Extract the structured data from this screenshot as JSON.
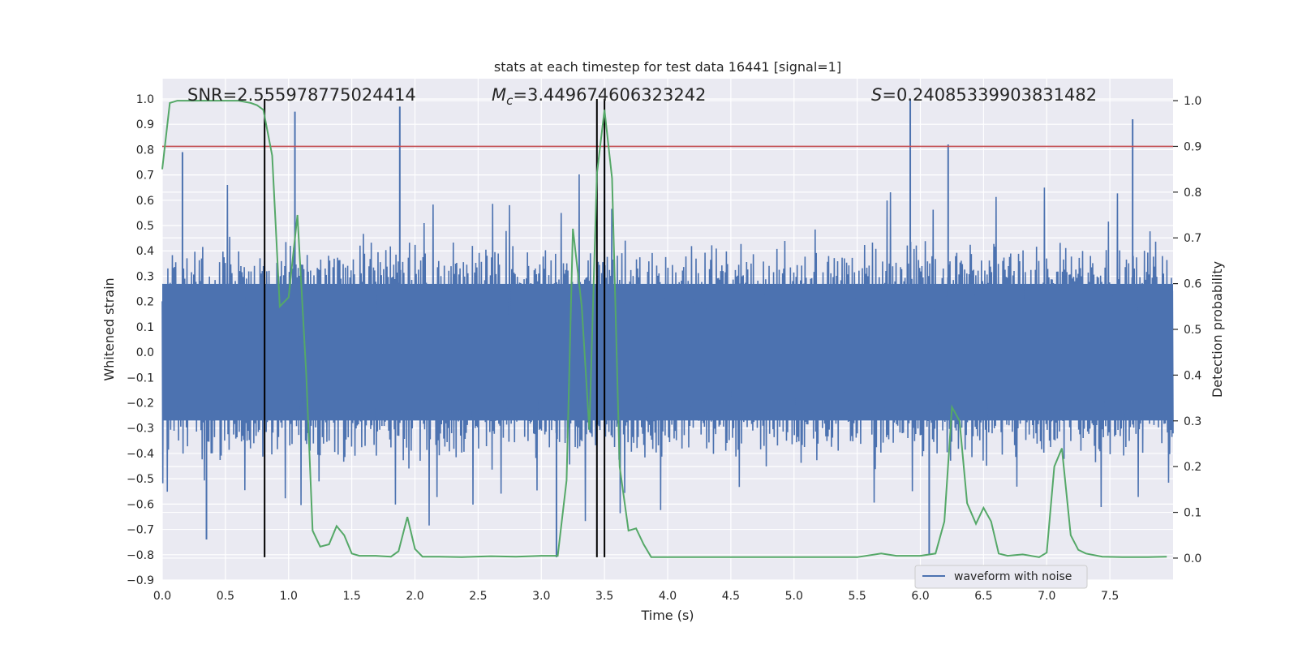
{
  "chart_data": {
    "type": "line",
    "title": "stats at each timestep for test data 16441 [signal=1]",
    "xlabel": "Time (s)",
    "ylabel_left": "Whitened strain",
    "ylabel_right": "Detection probability",
    "xlim": [
      0.0,
      8.0
    ],
    "ylim_left": [
      -0.9,
      1.08
    ],
    "ylim_right": [
      -0.048,
      1.048
    ],
    "xticks": [
      "0.0",
      "0.5",
      "1.0",
      "1.5",
      "2.0",
      "2.5",
      "3.0",
      "3.5",
      "4.0",
      "4.5",
      "5.0",
      "5.5",
      "6.0",
      "6.5",
      "7.0",
      "7.5"
    ],
    "yticks_left": [
      "-0.9",
      "-0.8",
      "-0.7",
      "-0.6",
      "-0.5",
      "-0.4",
      "-0.3",
      "-0.2",
      "-0.1",
      "0.0",
      "0.1",
      "0.2",
      "0.3",
      "0.4",
      "0.5",
      "0.6",
      "0.7",
      "0.8",
      "0.9",
      "1.0"
    ],
    "yticks_right": [
      "0.0",
      "0.1",
      "0.2",
      "0.3",
      "0.4",
      "0.5",
      "0.6",
      "0.7",
      "0.8",
      "0.9",
      "1.0"
    ],
    "annotations": [
      {
        "label": "SNR=2.555978775024414",
        "x": 0.2
      },
      {
        "label": "=3.449674606323242",
        "prefix": "M",
        "sub": "c",
        "x": 2.6
      },
      {
        "label": "=0.24085339903831482",
        "prefix": "S",
        "x": 5.6
      }
    ],
    "threshold": {
      "y_right": 0.9,
      "color": "#c44e52"
    },
    "vlines": [
      0.81,
      3.44,
      3.5
    ],
    "vline_y_left": [
      -0.81,
      1.0
    ],
    "series": [
      {
        "name": "waveform with noise",
        "axis": "left",
        "color": "#4c72b0",
        "note": "dense noisy strain around zero with spikes",
        "envelope": 0.45,
        "spikes": [
          {
            "x": 1.05,
            "y": 0.95
          },
          {
            "x": 1.88,
            "y": 0.97
          },
          {
            "x": 5.92,
            "y": 1.0
          },
          {
            "x": 6.22,
            "y": 0.82
          },
          {
            "x": 7.68,
            "y": 0.92
          },
          {
            "x": 0.16,
            "y": 0.79
          },
          {
            "x": 3.5,
            "y": 0.82
          },
          {
            "x": 3.12,
            "y": -0.81
          },
          {
            "x": 6.07,
            "y": -0.8
          },
          {
            "x": 0.35,
            "y": -0.74
          }
        ]
      },
      {
        "name": "",
        "axis": "right",
        "color": "#55a868",
        "x": [
          0.0,
          0.06,
          0.12,
          0.2,
          0.3,
          0.4,
          0.5,
          0.6,
          0.7,
          0.75,
          0.8,
          0.87,
          0.93,
          1.0,
          1.07,
          1.14,
          1.19,
          1.25,
          1.32,
          1.38,
          1.44,
          1.5,
          1.56,
          1.69,
          1.81,
          1.87,
          1.94,
          2.0,
          2.06,
          2.19,
          2.37,
          2.6,
          2.8,
          3.0,
          3.13,
          3.2,
          3.25,
          3.32,
          3.38,
          3.44,
          3.5,
          3.56,
          3.62,
          3.69,
          3.75,
          3.81,
          3.87,
          4.0,
          4.5,
          5.0,
          5.5,
          5.69,
          5.81,
          6.0,
          6.12,
          6.19,
          6.25,
          6.31,
          6.37,
          6.44,
          6.5,
          6.56,
          6.62,
          6.69,
          6.81,
          6.94,
          7.0,
          7.06,
          7.12,
          7.19,
          7.25,
          7.31,
          7.44,
          7.6,
          7.8,
          7.95
        ],
        "y": [
          0.85,
          0.995,
          1.0,
          1.0,
          1.0,
          1.0,
          1.0,
          1.0,
          0.995,
          0.99,
          0.98,
          0.88,
          0.55,
          0.57,
          0.75,
          0.4,
          0.06,
          0.025,
          0.03,
          0.07,
          0.05,
          0.01,
          0.005,
          0.005,
          0.003,
          0.015,
          0.09,
          0.02,
          0.003,
          0.003,
          0.002,
          0.004,
          0.003,
          0.005,
          0.005,
          0.17,
          0.72,
          0.55,
          0.28,
          0.84,
          0.98,
          0.83,
          0.2,
          0.06,
          0.065,
          0.03,
          0.002,
          0.002,
          0.002,
          0.002,
          0.002,
          0.01,
          0.005,
          0.005,
          0.01,
          0.08,
          0.33,
          0.3,
          0.12,
          0.075,
          0.11,
          0.08,
          0.01,
          0.005,
          0.008,
          0.002,
          0.012,
          0.2,
          0.24,
          0.05,
          0.018,
          0.01,
          0.003,
          0.002,
          0.002,
          0.003
        ]
      }
    ],
    "legend": {
      "placement": "lower-center-right",
      "entries": [
        "waveform with noise"
      ]
    },
    "grid": true
  }
}
